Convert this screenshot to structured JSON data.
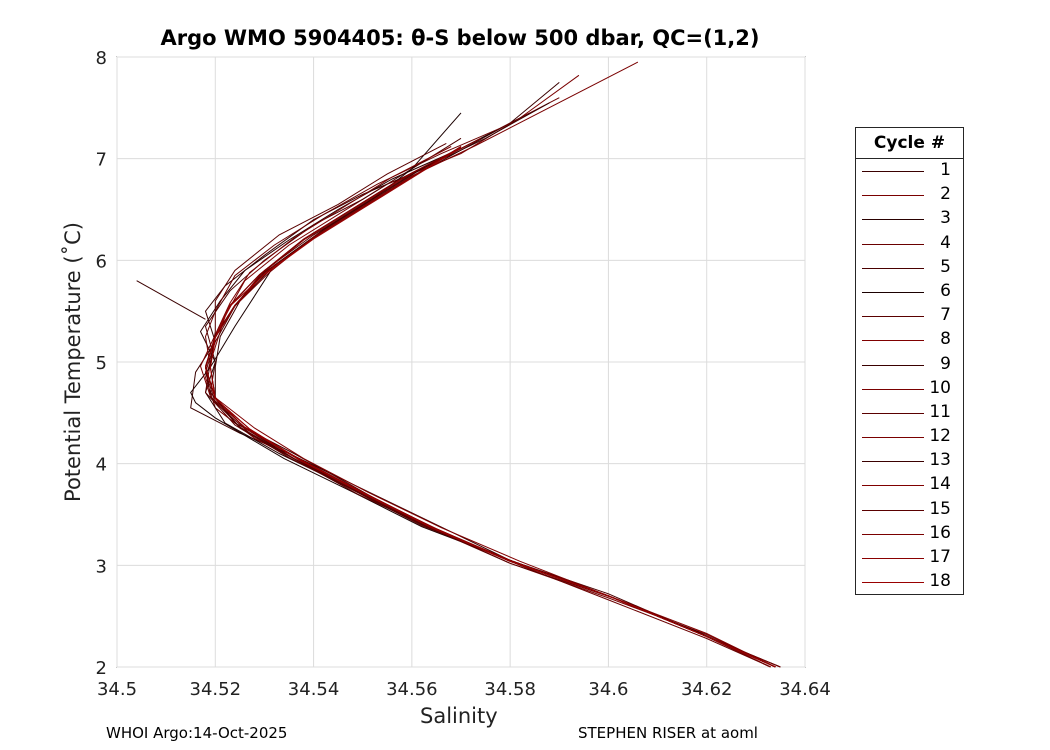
{
  "chart_data": {
    "type": "line",
    "title": "Argo WMO 5904405: θ-S below 500 dbar,  QC=(1,2)",
    "xlabel": "Salinity",
    "ylabel": "Potential Temperature (˚C)",
    "xlim": [
      34.5,
      34.64
    ],
    "ylim": [
      2,
      8
    ],
    "xticks": [
      "34.5",
      "34.52",
      "34.54",
      "34.56",
      "34.58",
      "34.6",
      "34.62",
      "34.64"
    ],
    "yticks": [
      "2",
      "3",
      "4",
      "5",
      "6",
      "7",
      "8"
    ],
    "grid": true,
    "legend_title": "Cycle #",
    "legend_position": "right",
    "series": [
      {
        "name": "1",
        "color": "#3a0000",
        "x": [
          34.635,
          34.62,
          34.6,
          34.58,
          34.565,
          34.55,
          34.535,
          34.525,
          34.515,
          34.516,
          34.52,
          34.518,
          34.522,
          34.53,
          34.54,
          34.55,
          34.565,
          34.58,
          34.59
        ],
        "y": [
          2.0,
          2.3,
          2.7,
          3.05,
          3.4,
          3.75,
          4.1,
          4.3,
          4.55,
          4.9,
          5.2,
          5.5,
          5.75,
          6.05,
          6.4,
          6.65,
          6.95,
          7.35,
          7.75
        ]
      },
      {
        "name": "2",
        "color": "#7a0000",
        "x": [
          34.634,
          34.62,
          34.6,
          34.58,
          34.565,
          34.55,
          34.54,
          34.528,
          34.52,
          34.518,
          34.52,
          34.522,
          34.526,
          34.535,
          34.545,
          34.555,
          34.57,
          34.582,
          34.594
        ],
        "y": [
          2.0,
          2.32,
          2.68,
          3.02,
          3.35,
          3.7,
          3.95,
          4.25,
          4.55,
          4.85,
          5.15,
          5.45,
          5.8,
          6.15,
          6.45,
          6.75,
          7.05,
          7.4,
          7.82
        ]
      },
      {
        "name": "3",
        "color": "#2a0000",
        "x": [
          34.634,
          34.618,
          34.6,
          34.58,
          34.562,
          34.548,
          34.533,
          34.522,
          34.518,
          34.52,
          34.517,
          34.521,
          34.526,
          34.535,
          34.545,
          34.556,
          34.57,
          34.584
        ],
        "y": [
          2.0,
          2.35,
          2.7,
          3.05,
          3.4,
          3.75,
          4.1,
          4.4,
          4.7,
          5.0,
          5.3,
          5.6,
          5.9,
          6.2,
          6.5,
          6.8,
          7.1,
          7.45
        ]
      },
      {
        "name": "4",
        "color": "#6a0000",
        "x": [
          34.633,
          34.62,
          34.6,
          34.582,
          34.565,
          34.55,
          34.536,
          34.526,
          34.52,
          34.519,
          34.518,
          34.52,
          34.524,
          34.532,
          34.542,
          34.553,
          34.566,
          34.578,
          34.59
        ],
        "y": [
          2.0,
          2.28,
          2.66,
          3.0,
          3.35,
          3.7,
          4.05,
          4.35,
          4.65,
          4.95,
          5.25,
          5.5,
          5.85,
          6.15,
          6.45,
          6.75,
          7.05,
          7.3,
          7.6
        ]
      },
      {
        "name": "5",
        "color": "#4a0000",
        "x": [
          34.634,
          34.62,
          34.6,
          34.58,
          34.56,
          34.548,
          34.536,
          34.524,
          34.519,
          34.52,
          34.518,
          34.523,
          34.53,
          34.54,
          34.55,
          34.56,
          34.57
        ],
        "y": [
          2.0,
          2.3,
          2.72,
          3.05,
          3.45,
          3.78,
          4.1,
          4.4,
          4.7,
          5.0,
          5.35,
          5.7,
          6.0,
          6.35,
          6.6,
          6.9,
          7.2
        ]
      },
      {
        "name": "6",
        "color": "#1a0000",
        "x": [
          34.635,
          34.62,
          34.6,
          34.58,
          34.562,
          34.548,
          34.534,
          34.52,
          34.516,
          34.515,
          34.519,
          34.524,
          34.532,
          34.542,
          34.552,
          34.56,
          34.57
        ],
        "y": [
          2.0,
          2.3,
          2.7,
          3.05,
          3.38,
          3.72,
          4.05,
          4.45,
          4.6,
          4.7,
          4.95,
          5.35,
          5.95,
          6.3,
          6.6,
          6.9,
          7.45
        ]
      },
      {
        "name": "7",
        "color": "#5a0000",
        "x": [
          34.633,
          34.62,
          34.601,
          34.58,
          34.564,
          34.549,
          34.537,
          34.527,
          34.52,
          34.518,
          34.52,
          34.524,
          34.53,
          34.54,
          34.55,
          34.56,
          34.572
        ],
        "y": [
          2.0,
          2.3,
          2.68,
          3.02,
          3.36,
          3.7,
          4.02,
          4.3,
          4.6,
          4.9,
          5.2,
          5.55,
          5.9,
          6.25,
          6.55,
          6.85,
          7.15
        ]
      },
      {
        "name": "8",
        "color": "#800000",
        "x": [
          34.634,
          34.62,
          34.6,
          34.582,
          34.566,
          34.551,
          34.538,
          34.528,
          34.52,
          34.518,
          34.52,
          34.524,
          34.529,
          34.538,
          34.548,
          34.558,
          34.574
        ],
        "y": [
          2.0,
          2.33,
          2.7,
          3.04,
          3.37,
          3.72,
          4.05,
          4.35,
          4.65,
          4.95,
          5.25,
          5.55,
          5.85,
          6.2,
          6.5,
          6.8,
          7.2
        ]
      },
      {
        "name": "9",
        "color": "#3a0000",
        "x": [
          34.634,
          34.62,
          34.6,
          34.58,
          34.563,
          34.55,
          34.536,
          34.525,
          34.52,
          34.52,
          34.521,
          34.525,
          34.532,
          34.542,
          34.552,
          34.562,
          34.575,
          34.588
        ],
        "y": [
          2.0,
          2.3,
          2.7,
          3.05,
          3.38,
          3.72,
          4.05,
          4.35,
          4.65,
          4.95,
          5.25,
          5.6,
          5.95,
          6.3,
          6.6,
          6.9,
          7.2,
          7.55
        ]
      },
      {
        "name": "10",
        "color": "#7a0000",
        "x": [
          34.635,
          34.62,
          34.601,
          34.58,
          34.564,
          34.55,
          34.537,
          34.526,
          34.519,
          34.517,
          34.52,
          34.523,
          34.527,
          34.536,
          34.546,
          34.556,
          34.568
        ],
        "y": [
          2.0,
          2.3,
          2.68,
          3.04,
          3.37,
          3.72,
          4.05,
          4.36,
          4.66,
          4.96,
          5.27,
          5.58,
          5.88,
          6.22,
          6.52,
          6.82,
          7.12
        ]
      },
      {
        "name": "11",
        "color": "#5a0000",
        "x": [
          34.634,
          34.62,
          34.6,
          34.58,
          34.562,
          34.548,
          34.535,
          34.524,
          34.518,
          34.519,
          34.52,
          34.52,
          34.524,
          34.533,
          34.545,
          34.555,
          34.567
        ],
        "y": [
          2.0,
          2.3,
          2.7,
          3.05,
          3.39,
          3.74,
          4.06,
          4.38,
          4.7,
          5.0,
          5.3,
          5.6,
          5.9,
          6.25,
          6.55,
          6.85,
          7.15
        ]
      },
      {
        "name": "12",
        "color": "#7a0000",
        "x": [
          34.634,
          34.62,
          34.6,
          34.58,
          34.565,
          34.55,
          34.537,
          34.527,
          34.52,
          34.518,
          34.52,
          34.524,
          34.531,
          34.54,
          34.55,
          34.56,
          34.573,
          34.606
        ],
        "y": [
          2.0,
          2.3,
          2.7,
          3.04,
          3.36,
          3.71,
          4.04,
          4.34,
          4.64,
          4.94,
          5.24,
          5.55,
          5.88,
          6.23,
          6.53,
          6.83,
          7.13,
          7.95
        ]
      },
      {
        "name": "13",
        "color": "#3a0000",
        "x": [
          34.633,
          34.62,
          34.6,
          34.58,
          34.563,
          34.549,
          34.536,
          34.526,
          34.52,
          34.519,
          34.52,
          34.524,
          34.53,
          34.54,
          34.55,
          34.56,
          34.57
        ],
        "y": [
          2.0,
          2.3,
          2.7,
          3.05,
          3.38,
          3.72,
          4.05,
          4.35,
          4.65,
          4.95,
          5.25,
          5.55,
          5.88,
          6.22,
          6.52,
          6.82,
          7.12
        ]
      },
      {
        "name": "14",
        "color": "#800000",
        "x": [
          34.634,
          34.62,
          34.6,
          34.58,
          34.564,
          34.55,
          34.537,
          34.526,
          34.52,
          34.518,
          34.52,
          34.523,
          34.529,
          34.538,
          34.548,
          34.558,
          34.57
        ],
        "y": [
          2.0,
          2.3,
          2.7,
          3.04,
          3.37,
          3.71,
          4.04,
          4.35,
          4.65,
          4.95,
          5.25,
          5.56,
          5.86,
          6.21,
          6.51,
          6.81,
          7.11
        ]
      },
      {
        "name": "15",
        "color": "#5a0000",
        "x": [
          34.634,
          34.62,
          34.6,
          34.58,
          34.563,
          34.549,
          34.536,
          34.525,
          34.519,
          34.518,
          34.52,
          34.524,
          34.53,
          34.54,
          34.55,
          34.56,
          34.57
        ],
        "y": [
          2.0,
          2.3,
          2.7,
          3.05,
          3.38,
          3.72,
          4.05,
          4.36,
          4.66,
          4.96,
          5.26,
          5.56,
          5.88,
          6.22,
          6.52,
          6.82,
          7.12
        ]
      },
      {
        "name": "16",
        "color": "#7a0000",
        "x": [
          34.633,
          34.62,
          34.6,
          34.58,
          34.564,
          34.55,
          34.537,
          34.527,
          34.52,
          34.518,
          34.52,
          34.523,
          34.529,
          34.538,
          34.548,
          34.558,
          34.57
        ],
        "y": [
          2.0,
          2.3,
          2.7,
          3.04,
          3.37,
          3.71,
          4.04,
          4.34,
          4.64,
          4.94,
          5.24,
          5.55,
          5.86,
          6.21,
          6.51,
          6.81,
          7.11
        ]
      },
      {
        "name": "17",
        "color": "#8a0000",
        "x": [
          34.634,
          34.62,
          34.6,
          34.58,
          34.564,
          34.55,
          34.537,
          34.526,
          34.52,
          34.518,
          34.52,
          34.524,
          34.53,
          34.54,
          34.55,
          34.56,
          34.57
        ],
        "y": [
          2.0,
          2.3,
          2.7,
          3.05,
          3.38,
          3.72,
          4.05,
          4.35,
          4.65,
          4.95,
          5.25,
          5.55,
          5.87,
          6.22,
          6.52,
          6.82,
          7.12
        ]
      },
      {
        "name": "18",
        "color": "#990000",
        "x": [
          34.634,
          34.62,
          34.6,
          34.58,
          34.564,
          34.55,
          34.537,
          34.527,
          34.52,
          34.519,
          34.52,
          34.523,
          34.53,
          34.54,
          34.55,
          34.56,
          34.57
        ],
        "y": [
          2.0,
          2.3,
          2.7,
          3.04,
          3.37,
          3.71,
          4.04,
          4.34,
          4.64,
          4.94,
          5.24,
          5.55,
          5.86,
          6.21,
          6.51,
          6.81,
          7.11
        ]
      }
    ]
  },
  "footer": {
    "left": "WHOI Argo:14-Oct-2025",
    "right": "STEPHEN RISER at aoml"
  }
}
